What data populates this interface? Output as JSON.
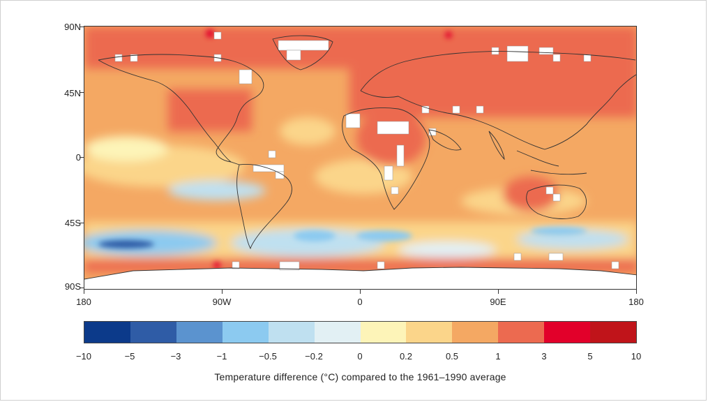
{
  "figure": {
    "caption": "Temperature difference (°C) compared to the 1961–1990 average"
  },
  "axes": {
    "lat_labels": [
      "90N",
      "45N",
      "0",
      "45S",
      "90S"
    ],
    "lon_labels": [
      "180",
      "90W",
      "0",
      "90E",
      "180"
    ]
  },
  "legend": {
    "boundaries": [
      "−10",
      "−5",
      "−3",
      "−1",
      "−0.5",
      "−0.2",
      "0",
      "0.2",
      "0.5",
      "1",
      "3",
      "5",
      "10"
    ],
    "colors": [
      "#0c3a8a",
      "#2f5ca6",
      "#5b93cf",
      "#8ccaf0",
      "#bfe0f0",
      "#e2f0f4",
      "#fdf4b8",
      "#fbd58a",
      "#f4a863",
      "#ec6a50",
      "#e2002a",
      "#c0141a"
    ]
  },
  "colors": {
    "land_outline": "#333333",
    "missing_data": "#ffffff"
  }
}
